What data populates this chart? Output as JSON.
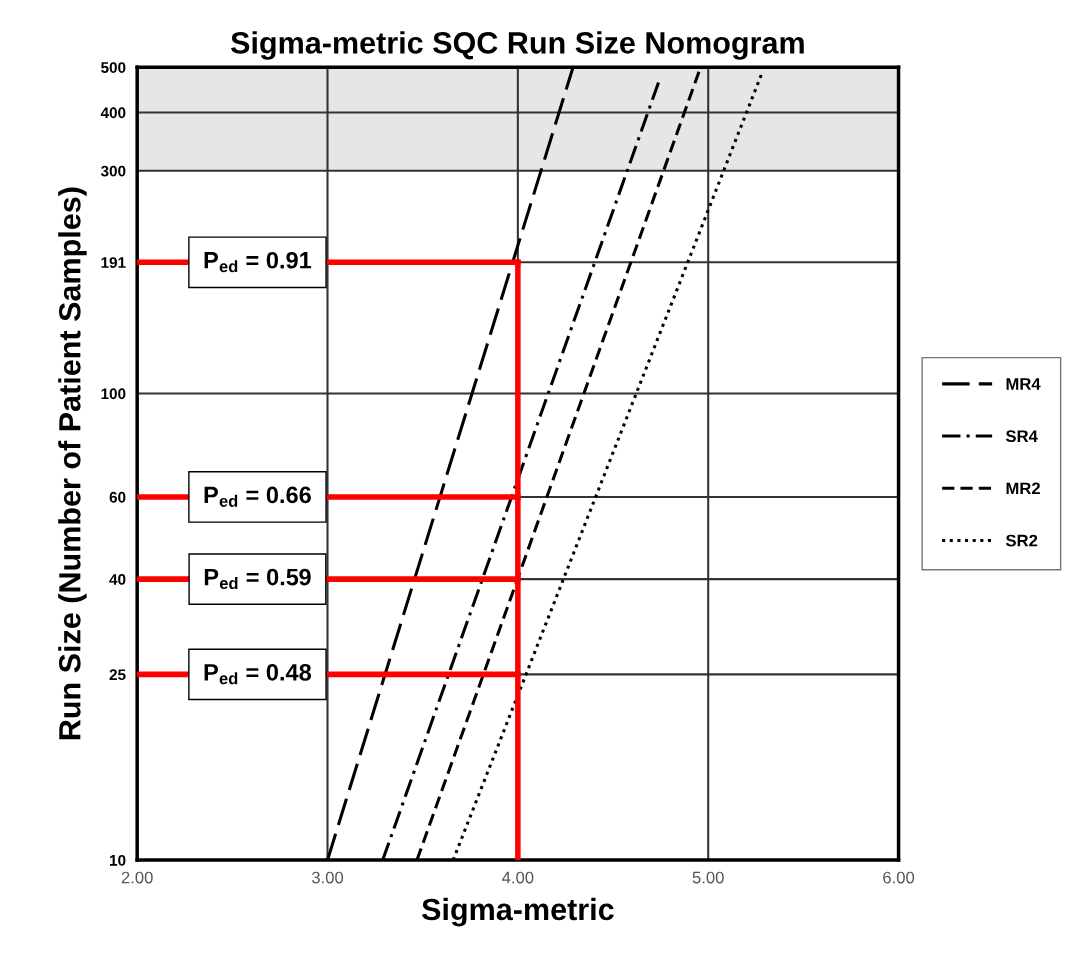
{
  "chart_data": {
    "type": "line",
    "title": "Sigma-metric SQC Run Size Nomogram",
    "xlabel": "Sigma-metric",
    "ylabel": "Run Size (Number of Patient Samples)",
    "log": "y",
    "xlim": [
      2,
      6
    ],
    "ylim": [
      10,
      500
    ],
    "xticks": [
      {
        "value": 2,
        "label": "2.00"
      },
      {
        "value": 3,
        "label": "3.00"
      },
      {
        "value": 4,
        "label": "4.00"
      },
      {
        "value": 5,
        "label": "5.00"
      },
      {
        "value": 6,
        "label": "6.00"
      }
    ],
    "yticks": [
      10,
      25,
      40,
      60,
      100,
      191,
      300,
      400,
      500
    ],
    "grid": true,
    "legend": "right",
    "bands": [
      {
        "axis": "y",
        "from": 300,
        "to": 500,
        "color": "#e6e6e6"
      }
    ],
    "series": [
      {
        "name": "MR4",
        "color": "#000000",
        "line_style": "long dashed",
        "x": [
          3.0,
          4.29
        ],
        "values": [
          10,
          500
        ]
      },
      {
        "name": "SR4",
        "color": "#000000",
        "line_style": "dash-dot",
        "x": [
          3.29,
          4.74
        ],
        "values": [
          10,
          465
        ]
      },
      {
        "name": "MR2",
        "color": "#000000",
        "line_style": "dashed",
        "x": [
          3.47,
          4.96
        ],
        "values": [
          10,
          500
        ]
      },
      {
        "name": "SR2",
        "color": "#000000",
        "line_style": "dotted",
        "x": [
          3.66,
          5.28
        ],
        "values": [
          10,
          483
        ]
      },
      {
        "color": "#ff0000",
        "line_style": "solid",
        "x": [
          2,
          4
        ],
        "values": [
          191,
          191
        ]
      },
      {
        "color": "#ff0000",
        "line_style": "solid",
        "x": [
          2,
          4
        ],
        "values": [
          60,
          60
        ]
      },
      {
        "color": "#ff0000",
        "line_style": "solid",
        "x": [
          2,
          4
        ],
        "values": [
          40,
          40
        ]
      },
      {
        "color": "#ff0000",
        "line_style": "solid",
        "x": [
          2,
          4
        ],
        "values": [
          25,
          25
        ]
      },
      {
        "color": "#ff0000",
        "line_style": "solid",
        "x": [
          4,
          4
        ],
        "values": [
          10,
          191
        ]
      }
    ],
    "annotations": [
      {
        "text": "P$_{ed}$ = 0.91",
        "y": 191
      },
      {
        "text": "P$_{ed}$ = 0.66",
        "y": 60
      },
      {
        "text": "P$_{ed}$ = 0.59",
        "y": 40
      },
      {
        "text": "P$_{ed}$ = 0.48",
        "y": 25
      }
    ]
  }
}
